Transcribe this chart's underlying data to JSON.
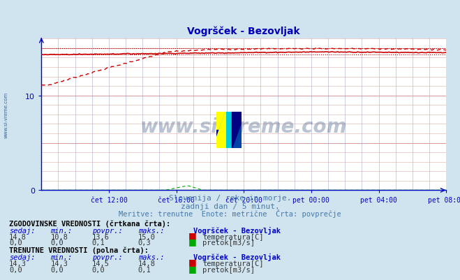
{
  "title": "Vogršček - Bezovljak",
  "bg_color": "#d0e4f0",
  "plot_bg_color": "#ffffff",
  "grid_color_h": "#ddaaaa",
  "grid_color_v": "#aaaacc",
  "title_color": "#0000bb",
  "axis_color": "#0000cc",
  "text_color": "#4477aa",
  "temp_color": "#cc0000",
  "flow_color": "#00aa00",
  "xlim": [
    0,
    288
  ],
  "ylim": [
    0,
    16
  ],
  "xtick_labels": [
    "čet 12:00",
    "čet 16:00",
    "čet 20:00",
    "pet 00:00",
    "pet 04:00",
    "pet 08:00"
  ],
  "xtick_positions": [
    48,
    96,
    144,
    192,
    240,
    288
  ],
  "subtitle1": "Slovenija / reke in morje.",
  "subtitle2": "zadnji dan / 5 minut.",
  "subtitle3": "Meritve: trenutne  Enote: metrične  Črta: povprečje",
  "hist_label": "ZGODOVINSKE VREDNOSTI (črtkana črta):",
  "curr_label": "TRENUTNE VREDNOSTI (polna črta):",
  "station": "Vogršček - Bezovljak",
  "col_headers": [
    "sedaj:",
    "min.:",
    "povpr.:",
    "maks.:"
  ],
  "hist_temp_vals": [
    "14,8",
    "10,8",
    "13,6",
    "15,0"
  ],
  "hist_flow_vals": [
    "0,0",
    "0,0",
    "0,1",
    "0,3"
  ],
  "curr_temp_vals": [
    "14,3",
    "14,3",
    "14,5",
    "14,8"
  ],
  "curr_flow_vals": [
    "0,0",
    "0,0",
    "0,0",
    "0,1"
  ],
  "hist_max_temp": 15.0,
  "hist_min_temp": 10.8,
  "hist_avg_temp": 13.6,
  "curr_avg_temp": 14.5,
  "curr_min_temp": 14.3,
  "curr_max_temp": 14.8,
  "watermark": "www.si-vreme.com",
  "left_label": "www.si-vreme.com"
}
